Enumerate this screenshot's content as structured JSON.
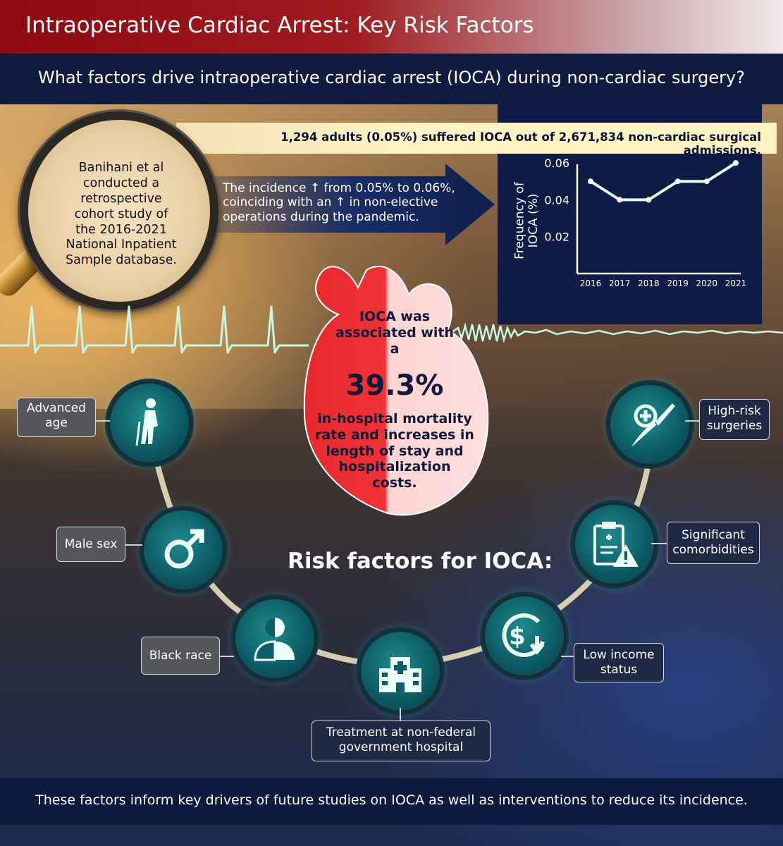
{
  "title": "Intraoperative Cardiac Arrest: Key Risk Factors",
  "question": "What factors drive intraoperative cardiac arrest (IOCA) during non-cardiac surgery?",
  "stat_banner": "1,294 adults (0.05%) suffered IOCA out of 2,671,834 non-cardiac surgical admissions.",
  "study_note": "Banihani et al conducted a retrospective cohort study of the 2016-2021 National Inpatient Sample database.",
  "trend_note": "The incidence ↑ from 0.05% to 0.06%, coinciding with an ↑ in non-elective operations during the  pandemic.",
  "heart": {
    "top_text": "IOCA was associated with a",
    "big_number": "39.3%",
    "bottom_text": "in-hospital mortality rate and increases in length of stay and hospitalization costs."
  },
  "risk_title": "Risk factors for IOCA:",
  "risk_factors": [
    {
      "label": "Advanced age",
      "icon": "elderly-person-icon"
    },
    {
      "label": "Male sex",
      "icon": "male-symbol-icon"
    },
    {
      "label": "Black race",
      "icon": "race-person-icon"
    },
    {
      "label": "Treatment at non-federal government hospital",
      "icon": "hospital-icon"
    },
    {
      "label": "Low income status",
      "icon": "dollar-down-icon"
    },
    {
      "label": "Significant comorbidities",
      "icon": "clipboard-warning-icon"
    },
    {
      "label": "High-risk surgeries",
      "icon": "scalpel-icon"
    }
  ],
  "footer": "These factors inform key drivers of future studies on IOCA as well as interventions to reduce its incidence.",
  "chart_data": {
    "type": "line",
    "x": [
      "2016",
      "2017",
      "2018",
      "2019",
      "2020",
      "2021"
    ],
    "series": [
      {
        "values": [
          0.05,
          0.04,
          0.04,
          0.05,
          0.05,
          0.06
        ]
      }
    ],
    "ylabel": "Frequency of IOCA (%)",
    "xlabel": "",
    "yticks": [
      "0.06",
      "0.04",
      "0.02"
    ],
    "ylim": [
      0.0,
      0.065
    ],
    "line_color": "#d9fff0"
  },
  "colors": {
    "title_red": "#8e0a12",
    "navy": "#0f1c3f",
    "teal": "#0d5c66",
    "heart_red": "#e8282c",
    "banner_yellow": "#fff3c4"
  }
}
